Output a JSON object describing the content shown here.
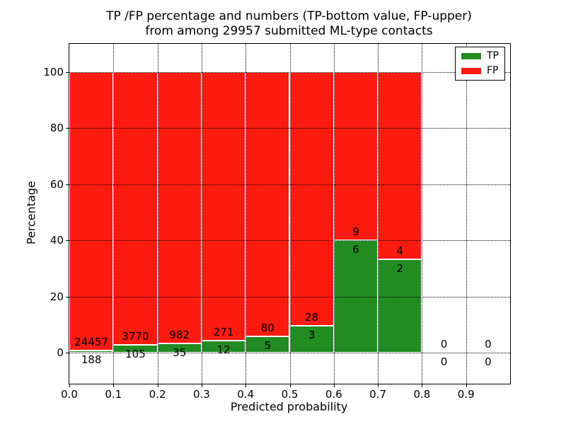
{
  "chart_data": {
    "type": "bar",
    "stacked": true,
    "title_lines": [
      "TP /FP percentage and numbers (TP-bottom value, FP-upper)",
      "from among 29957 submitted ML-type contacts"
    ],
    "total_submitted": 29957,
    "xlabel": "Predicted probability",
    "ylabel": "Percentage",
    "x_tick_labels": [
      "0.0",
      "0.1",
      "0.2",
      "0.3",
      "0.4",
      "0.5",
      "0.6",
      "0.7",
      "0.8",
      "0.9"
    ],
    "y_tick_labels": [
      "0",
      "20",
      "40",
      "60",
      "80",
      "100"
    ],
    "xlim": [
      0.0,
      1.0
    ],
    "ylim": [
      -11,
      110
    ],
    "grid": "dotted",
    "legend_position": "upper right",
    "legend": [
      {
        "name": "TP",
        "color": "#228b22"
      },
      {
        "name": "FP",
        "color": "#fb1b10"
      }
    ],
    "bins": [
      {
        "x0": 0.0,
        "x1": 0.1,
        "tp_count": 188,
        "fp_count": 24457,
        "tp_pct": 0.76,
        "fp_pct": 99.24
      },
      {
        "x0": 0.1,
        "x1": 0.2,
        "tp_count": 105,
        "fp_count": 3770,
        "tp_pct": 2.71,
        "fp_pct": 97.29
      },
      {
        "x0": 0.2,
        "x1": 0.3,
        "tp_count": 35,
        "fp_count": 982,
        "tp_pct": 3.44,
        "fp_pct": 96.56
      },
      {
        "x0": 0.3,
        "x1": 0.4,
        "tp_count": 12,
        "fp_count": 271,
        "tp_pct": 4.24,
        "fp_pct": 95.76
      },
      {
        "x0": 0.4,
        "x1": 0.5,
        "tp_count": 5,
        "fp_count": 80,
        "tp_pct": 5.88,
        "fp_pct": 94.12
      },
      {
        "x0": 0.5,
        "x1": 0.6,
        "tp_count": 3,
        "fp_count": 28,
        "tp_pct": 9.68,
        "fp_pct": 90.32
      },
      {
        "x0": 0.6,
        "x1": 0.7,
        "tp_count": 6,
        "fp_count": 9,
        "tp_pct": 40.0,
        "fp_pct": 60.0
      },
      {
        "x0": 0.7,
        "x1": 0.8,
        "tp_count": 2,
        "fp_count": 4,
        "tp_pct": 33.33,
        "fp_pct": 66.67
      },
      {
        "x0": 0.8,
        "x1": 0.9,
        "tp_count": 0,
        "fp_count": 0,
        "tp_pct": 0,
        "fp_pct": 0
      },
      {
        "x0": 0.9,
        "x1": 1.0,
        "tp_count": 0,
        "fp_count": 0,
        "tp_pct": 0,
        "fp_pct": 0
      }
    ]
  }
}
